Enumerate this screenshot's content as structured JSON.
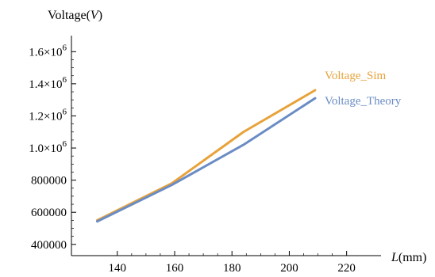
{
  "chart_data": {
    "type": "line",
    "x": [
      133,
      159,
      184,
      209
    ],
    "series": [
      {
        "name": "Voltage_Sim",
        "values": [
          550000,
          780000,
          1100000,
          1360000
        ],
        "color": "#E8A23A"
      },
      {
        "name": "Voltage_Theory",
        "values": [
          543000,
          770000,
          1020000,
          1310000
        ],
        "color": "#6A8CC4"
      }
    ],
    "xlim": [
      124,
      232
    ],
    "ylim": [
      330000,
      1700000
    ],
    "x_ticks": [
      {
        "value": 140,
        "label": "140"
      },
      {
        "value": 160,
        "label": "160"
      },
      {
        "value": 180,
        "label": "180"
      },
      {
        "value": 200,
        "label": "200"
      },
      {
        "value": 220,
        "label": "220"
      }
    ],
    "y_ticks": [
      {
        "value": 400000,
        "label": "400000"
      },
      {
        "value": 600000,
        "label": "600000"
      },
      {
        "value": 800000,
        "label": "800000"
      },
      {
        "value": 1000000,
        "label": "1.0×10",
        "exp": "6"
      },
      {
        "value": 1200000,
        "label": "1.2×10",
        "exp": "6"
      },
      {
        "value": 1400000,
        "label": "1.4×10",
        "exp": "6"
      },
      {
        "value": 1600000,
        "label": "1.6×10",
        "exp": "6"
      }
    ],
    "xlabel": {
      "italic": "L",
      "rest": "(mm)"
    },
    "ylabel": {
      "text": "Voltage(",
      "italic": "V",
      "close": ")"
    },
    "grid": false,
    "legend": "inline-right"
  }
}
